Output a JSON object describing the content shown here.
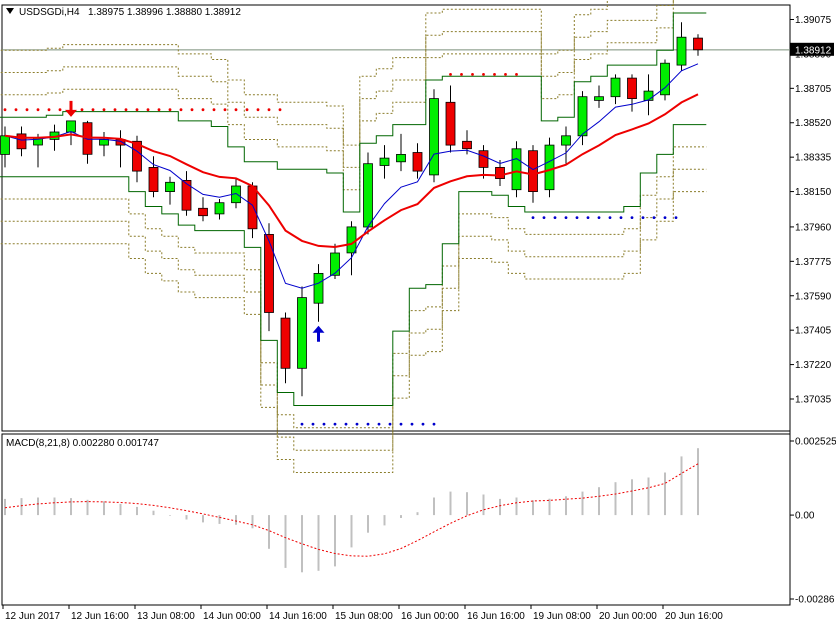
{
  "header": {
    "symbol": "USDSGDi,H4",
    "ohlc": "1.38975 1.38996 1.38880 1.38912",
    "macd_label": "MACD(8,21,8) 0.002280 0.001747"
  },
  "colors": {
    "bull": "#00ee00",
    "bear": "#ee0000",
    "wick": "#000000",
    "ma_fast": "#0000cc",
    "ma_slow": "#ee0000",
    "channel": "#006600",
    "bands": "#8b7d2b",
    "signal_red": "#ee0000",
    "signal_blue": "#0000cc",
    "macd_hist": "#c0c0c0",
    "macd_signal": "#ee0000",
    "price_line": "#7a8f7a"
  },
  "chart_data": [
    {
      "type": "candlestick",
      "symbol": "USDSGDi",
      "timeframe": "H4",
      "ylim": [
        1.37035,
        1.39075
      ],
      "y_ticks": [
        "1.39075",
        "1.38890",
        "1.38705",
        "1.38520",
        "1.38335",
        "1.38150",
        "1.37960",
        "1.37775",
        "1.37590",
        "1.37405",
        "1.37220",
        "1.37035"
      ],
      "current_price": "1.38912",
      "x_labels": [
        "12 Jun 2017",
        "12 Jun 16:00",
        "13 Jun 08:00",
        "14 Jun 00:00",
        "14 Jun 16:00",
        "15 Jun 08:00",
        "16 Jun 00:00",
        "16 Jun 16:00",
        "19 Jun 08:00",
        "20 Jun 00:00",
        "20 Jun 16:00"
      ],
      "candles": [
        {
          "o": 1.3835,
          "h": 1.385,
          "l": 1.3828,
          "c": 1.3845
        },
        {
          "o": 1.3846,
          "h": 1.385,
          "l": 1.3834,
          "c": 1.3838
        },
        {
          "o": 1.384,
          "h": 1.3846,
          "l": 1.3828,
          "c": 1.3844
        },
        {
          "o": 1.3843,
          "h": 1.3851,
          "l": 1.3837,
          "c": 1.3847
        },
        {
          "o": 1.3847,
          "h": 1.3853,
          "l": 1.384,
          "c": 1.3853
        },
        {
          "o": 1.3852,
          "h": 1.3853,
          "l": 1.383,
          "c": 1.3835
        },
        {
          "o": 1.384,
          "h": 1.3847,
          "l": 1.3834,
          "c": 1.3843
        },
        {
          "o": 1.3843,
          "h": 1.3848,
          "l": 1.3828,
          "c": 1.384
        },
        {
          "o": 1.3842,
          "h": 1.3845,
          "l": 1.382,
          "c": 1.3826
        },
        {
          "o": 1.3828,
          "h": 1.3834,
          "l": 1.3812,
          "c": 1.3815
        },
        {
          "o": 1.3815,
          "h": 1.3823,
          "l": 1.3808,
          "c": 1.382
        },
        {
          "o": 1.3821,
          "h": 1.3826,
          "l": 1.3802,
          "c": 1.3805
        },
        {
          "o": 1.3806,
          "h": 1.3812,
          "l": 1.3799,
          "c": 1.3802
        },
        {
          "o": 1.3803,
          "h": 1.3811,
          "l": 1.38,
          "c": 1.3809
        },
        {
          "o": 1.3809,
          "h": 1.3822,
          "l": 1.3806,
          "c": 1.3818
        },
        {
          "o": 1.3818,
          "h": 1.382,
          "l": 1.379,
          "c": 1.3795
        },
        {
          "o": 1.3792,
          "h": 1.3798,
          "l": 1.374,
          "c": 1.375
        },
        {
          "o": 1.3747,
          "h": 1.375,
          "l": 1.3712,
          "c": 1.372
        },
        {
          "o": 1.372,
          "h": 1.3764,
          "l": 1.3705,
          "c": 1.3758
        },
        {
          "o": 1.3755,
          "h": 1.3776,
          "l": 1.3745,
          "c": 1.3771
        },
        {
          "o": 1.377,
          "h": 1.3787,
          "l": 1.3768,
          "c": 1.3782
        },
        {
          "o": 1.3782,
          "h": 1.3799,
          "l": 1.377,
          "c": 1.3796
        },
        {
          "o": 1.3796,
          "h": 1.3836,
          "l": 1.3792,
          "c": 1.383
        },
        {
          "o": 1.3829,
          "h": 1.384,
          "l": 1.3822,
          "c": 1.3833
        },
        {
          "o": 1.3831,
          "h": 1.3846,
          "l": 1.3826,
          "c": 1.3835
        },
        {
          "o": 1.3836,
          "h": 1.3841,
          "l": 1.3822,
          "c": 1.3826
        },
        {
          "o": 1.3824,
          "h": 1.387,
          "l": 1.382,
          "c": 1.3865
        },
        {
          "o": 1.3863,
          "h": 1.3872,
          "l": 1.3836,
          "c": 1.384
        },
        {
          "o": 1.3842,
          "h": 1.3848,
          "l": 1.3835,
          "c": 1.3838
        },
        {
          "o": 1.3837,
          "h": 1.384,
          "l": 1.3822,
          "c": 1.3828
        },
        {
          "o": 1.3828,
          "h": 1.3832,
          "l": 1.3818,
          "c": 1.3822
        },
        {
          "o": 1.3816,
          "h": 1.3842,
          "l": 1.3812,
          "c": 1.3838
        },
        {
          "o": 1.3837,
          "h": 1.384,
          "l": 1.3809,
          "c": 1.3815
        },
        {
          "o": 1.3816,
          "h": 1.3844,
          "l": 1.3812,
          "c": 1.384
        },
        {
          "o": 1.384,
          "h": 1.385,
          "l": 1.383,
          "c": 1.3845
        },
        {
          "o": 1.3845,
          "h": 1.3869,
          "l": 1.384,
          "c": 1.3866
        },
        {
          "o": 1.3864,
          "h": 1.3872,
          "l": 1.386,
          "c": 1.3866
        },
        {
          "o": 1.3866,
          "h": 1.3878,
          "l": 1.3862,
          "c": 1.3876
        },
        {
          "o": 1.3876,
          "h": 1.3878,
          "l": 1.3858,
          "c": 1.3865
        },
        {
          "o": 1.3864,
          "h": 1.3878,
          "l": 1.3856,
          "c": 1.3869
        },
        {
          "o": 1.3867,
          "h": 1.3886,
          "l": 1.3864,
          "c": 1.3884
        },
        {
          "o": 1.3883,
          "h": 1.3906,
          "l": 1.388,
          "c": 1.3898
        },
        {
          "o": 1.38975,
          "h": 1.38996,
          "l": 1.3888,
          "c": 1.38912
        }
      ]
    },
    {
      "type": "bar",
      "indicator": "MACD(8,21,8)",
      "ylim": [
        -0.00286,
        0.002525
      ],
      "y_ticks": [
        "0.002525",
        "0.00",
        "-0.00286"
      ],
      "histogram": [
        0.00055,
        0.00058,
        0.0006,
        0.0006,
        0.00058,
        0.00052,
        0.00047,
        0.00038,
        0.00028,
        0.00015,
        -2e-05,
        -0.00015,
        -0.00025,
        -0.0003,
        -0.00033,
        -0.00045,
        -0.00115,
        -0.0018,
        -0.00195,
        -0.0019,
        -0.00175,
        -0.0011,
        -0.0006,
        -0.00035,
        -0.0001,
        0.0001,
        0.0006,
        0.0008,
        0.00078,
        0.0007,
        0.00055,
        0.0006,
        0.0005,
        0.00056,
        0.00064,
        0.0008,
        0.00095,
        0.00112,
        0.00122,
        0.00128,
        0.00145,
        0.002,
        0.00228
      ],
      "signal": [
        0.00025,
        0.00032,
        0.00038,
        0.00042,
        0.00045,
        0.00046,
        0.00045,
        0.00043,
        0.00039,
        0.00033,
        0.00025,
        0.00015,
        4e-05,
        -8e-05,
        -0.0002,
        -0.00033,
        -0.00053,
        -0.00077,
        -0.00098,
        -0.00117,
        -0.00131,
        -0.00139,
        -0.0014,
        -0.00132,
        -0.00114,
        -0.00087,
        -0.00057,
        -0.00028,
        -2e-05,
        0.00018,
        0.00032,
        0.00042,
        0.00048,
        0.0005,
        0.00054,
        0.00058,
        0.00064,
        0.00072,
        0.00082,
        0.00093,
        0.00108,
        0.00142,
        0.001747
      ]
    }
  ]
}
